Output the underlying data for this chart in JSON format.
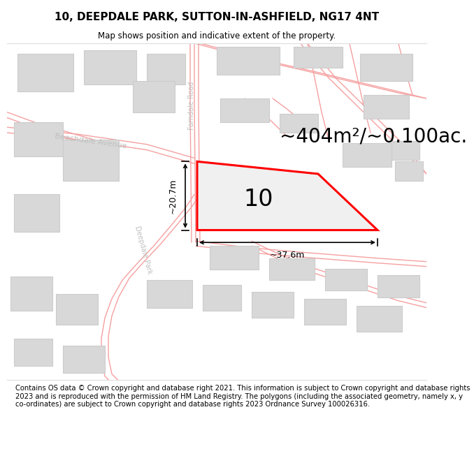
{
  "title_line1": "10, DEEPDALE PARK, SUTTON-IN-ASHFIELD, NG17 4NT",
  "title_line2": "Map shows position and indicative extent of the property.",
  "footer_text": "Contains OS data © Crown copyright and database right 2021. This information is subject to Crown copyright and database rights 2023 and is reproduced with the permission of HM Land Registry. The polygons (including the associated geometry, namely x, y co-ordinates) are subject to Crown copyright and database rights 2023 Ordnance Survey 100026316.",
  "area_text": "~404m²/~0.100ac.",
  "number_text": "10",
  "dim_width": "~37.6m",
  "dim_height": "~20.7m",
  "street_farndale": "Farndale Road",
  "street_beechdale": "Beechdale Avenue",
  "street_deepdale": "Deepdale Park",
  "bg_color": "#ffffff",
  "map_bg": "#ffffff",
  "plot_color_fill": "#f0f0f0",
  "plot_color_edge": "#ff0000",
  "road_line_color": "#f5a0a0",
  "building_fill": "#d8d8d8",
  "building_edge": "#cccccc",
  "title_fontsize": 11,
  "footer_fontsize": 7.2,
  "area_fontsize": 20,
  "number_fontsize": 24,
  "street_label_color": "#c0c0c0",
  "street_label_size": 7
}
